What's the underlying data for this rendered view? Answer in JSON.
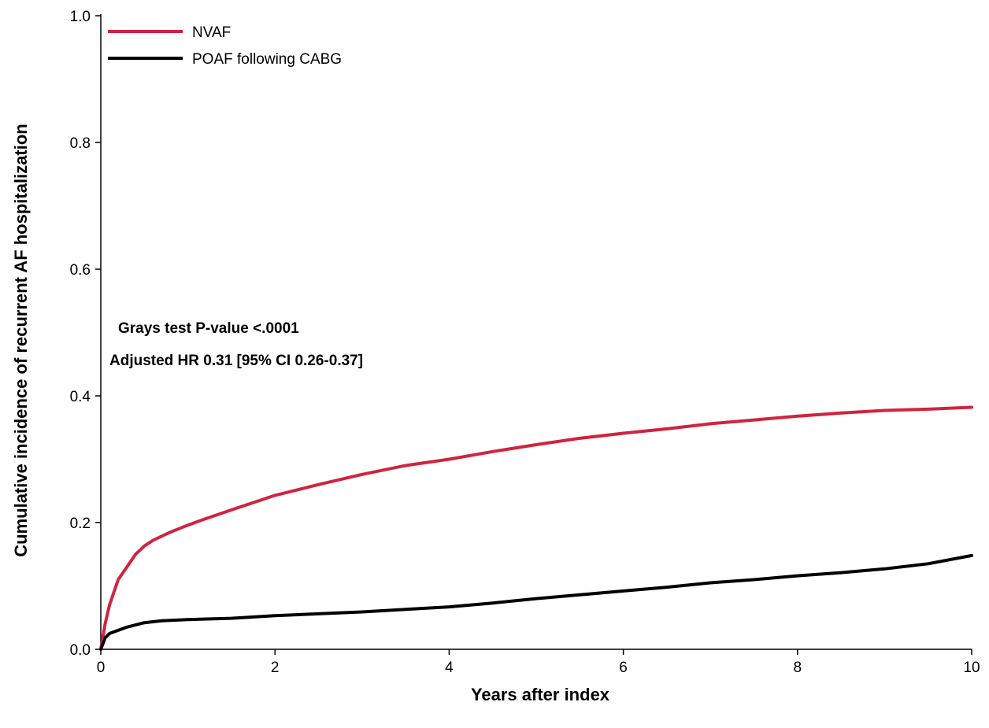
{
  "chart_data": {
    "type": "line",
    "title": "",
    "xlabel": "Years after index",
    "ylabel": "Cumulative incidence of recurrent AF hospitalization",
    "xlim": [
      0,
      10
    ],
    "ylim": [
      0,
      1.0
    ],
    "x_ticks": [
      0,
      2,
      4,
      6,
      8,
      10
    ],
    "x_tick_labels": [
      "0",
      "2",
      "4",
      "6",
      "8",
      "10"
    ],
    "y_ticks": [
      0.0,
      0.2,
      0.4,
      0.6,
      0.8,
      1.0
    ],
    "y_tick_labels": [
      "0.0",
      "0.2",
      "0.4",
      "0.6",
      "0.8",
      "1.0"
    ],
    "grid": false,
    "legend_position": "top-left",
    "annotations": [
      "Grays test P-value <.0001",
      "Adjusted HR 0.31 [95% CI 0.26-0.37]"
    ],
    "series": [
      {
        "name": "NVAF",
        "color": "#d0243f",
        "x": [
          0,
          0.05,
          0.1,
          0.15,
          0.2,
          0.3,
          0.4,
          0.5,
          0.6,
          0.8,
          1.0,
          1.2,
          1.5,
          2.0,
          2.5,
          3.0,
          3.5,
          4.0,
          4.5,
          5.0,
          5.5,
          6.0,
          6.5,
          7.0,
          7.5,
          8.0,
          8.5,
          9.0,
          9.5,
          10.0
        ],
        "y": [
          0.0,
          0.04,
          0.07,
          0.09,
          0.11,
          0.13,
          0.15,
          0.163,
          0.172,
          0.185,
          0.196,
          0.206,
          0.22,
          0.243,
          0.26,
          0.276,
          0.29,
          0.3,
          0.312,
          0.323,
          0.333,
          0.341,
          0.348,
          0.356,
          0.362,
          0.368,
          0.373,
          0.377,
          0.379,
          0.382
        ]
      },
      {
        "name": "POAF following CABG",
        "color": "#000000",
        "x": [
          0,
          0.05,
          0.1,
          0.2,
          0.3,
          0.5,
          0.7,
          1.0,
          1.5,
          2.0,
          2.5,
          3.0,
          3.5,
          4.0,
          4.5,
          5.0,
          5.5,
          6.0,
          6.5,
          7.0,
          7.5,
          8.0,
          8.5,
          9.0,
          9.5,
          10.0
        ],
        "y": [
          0.0,
          0.018,
          0.025,
          0.03,
          0.035,
          0.042,
          0.045,
          0.047,
          0.049,
          0.053,
          0.056,
          0.059,
          0.063,
          0.067,
          0.073,
          0.08,
          0.086,
          0.092,
          0.098,
          0.105,
          0.11,
          0.116,
          0.121,
          0.127,
          0.135,
          0.148
        ]
      }
    ]
  }
}
